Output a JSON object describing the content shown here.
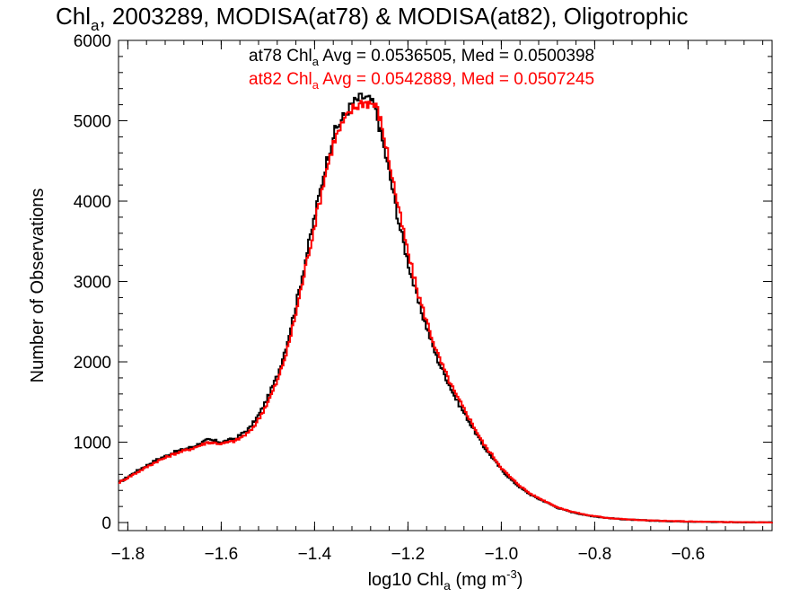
{
  "chart_data": {
    "type": "line",
    "title": {
      "pre": "Chl",
      "sub": "a",
      "post": ", 2003289, MODISA(at78) & MODISA(at82), Oligotrophic"
    },
    "xlabel": {
      "pre": "log10 Chl",
      "sub": "a",
      "mid": " (mg m",
      "sup": "-3",
      "post": ")"
    },
    "ylabel": "Number of Observations",
    "xlim": [
      -1.82,
      -0.42
    ],
    "ylim": [
      -100,
      6000
    ],
    "xticks": [
      -1.8,
      -1.6,
      -1.4,
      -1.2,
      -1.0,
      -0.8,
      -0.6
    ],
    "xtick_labels": [
      "−1.8",
      "−1.6",
      "−1.4",
      "−1.2",
      "−1.0",
      "−0.8",
      "−0.6"
    ],
    "yticks": [
      0,
      1000,
      2000,
      3000,
      4000,
      5000,
      6000
    ],
    "ytick_labels": [
      "0",
      "1000",
      "2000",
      "3000",
      "4000",
      "5000",
      "6000"
    ],
    "series": [
      {
        "name": "at78",
        "color": "#000000",
        "legend": {
          "pre": "at78 Chl",
          "sub": "a",
          "post": " Avg = 0.0536505, Med = 0.0500398"
        },
        "x": [
          -1.82,
          -1.78,
          -1.74,
          -1.7,
          -1.66,
          -1.63,
          -1.6,
          -1.57,
          -1.54,
          -1.52,
          -1.5,
          -1.48,
          -1.46,
          -1.44,
          -1.42,
          -1.4,
          -1.38,
          -1.36,
          -1.34,
          -1.32,
          -1.3,
          -1.28,
          -1.27,
          -1.26,
          -1.24,
          -1.22,
          -1.2,
          -1.18,
          -1.16,
          -1.14,
          -1.12,
          -1.1,
          -1.08,
          -1.06,
          -1.04,
          -1.02,
          -1.0,
          -0.98,
          -0.96,
          -0.94,
          -0.92,
          -0.9,
          -0.88,
          -0.85,
          -0.82,
          -0.78,
          -0.74,
          -0.7,
          -0.66,
          -0.62,
          -0.58,
          -0.54,
          -0.5,
          -0.46,
          -0.42
        ],
        "y": [
          500,
          650,
          780,
          880,
          950,
          1030,
          1000,
          1050,
          1180,
          1350,
          1580,
          1850,
          2250,
          2750,
          3300,
          3850,
          4400,
          4850,
          5050,
          5220,
          5300,
          5250,
          5100,
          4850,
          4300,
          3700,
          3200,
          2750,
          2400,
          2050,
          1800,
          1550,
          1350,
          1150,
          950,
          800,
          650,
          530,
          430,
          350,
          290,
          240,
          180,
          130,
          90,
          60,
          40,
          28,
          20,
          15,
          10,
          7,
          4,
          2,
          1
        ]
      },
      {
        "name": "at82",
        "color": "#ff0000",
        "legend": {
          "pre": "at82 Chl",
          "sub": "a",
          "post": " Avg = 0.0542889, Med = 0.0507245"
        },
        "x": [
          -1.82,
          -1.78,
          -1.74,
          -1.7,
          -1.66,
          -1.63,
          -1.6,
          -1.57,
          -1.54,
          -1.52,
          -1.5,
          -1.48,
          -1.46,
          -1.44,
          -1.42,
          -1.4,
          -1.38,
          -1.36,
          -1.34,
          -1.32,
          -1.3,
          -1.28,
          -1.27,
          -1.26,
          -1.24,
          -1.22,
          -1.2,
          -1.18,
          -1.16,
          -1.14,
          -1.12,
          -1.1,
          -1.08,
          -1.06,
          -1.04,
          -1.02,
          -1.0,
          -0.98,
          -0.96,
          -0.94,
          -0.92,
          -0.9,
          -0.88,
          -0.85,
          -0.82,
          -0.78,
          -0.74,
          -0.7,
          -0.66,
          -0.62,
          -0.58,
          -0.54,
          -0.5,
          -0.46,
          -0.42
        ],
        "y": [
          500,
          630,
          760,
          860,
          930,
          1000,
          980,
          1020,
          1130,
          1300,
          1520,
          1780,
          2150,
          2650,
          3200,
          3750,
          4300,
          4750,
          4980,
          5150,
          5230,
          5220,
          5180,
          5000,
          4450,
          3850,
          3320,
          2850,
          2480,
          2120,
          1850,
          1600,
          1400,
          1190,
          980,
          830,
          670,
          550,
          450,
          360,
          300,
          245,
          185,
          135,
          95,
          62,
          42,
          30,
          21,
          16,
          11,
          8,
          5,
          3,
          1
        ]
      }
    ],
    "grid": false,
    "legend_position": "top"
  }
}
